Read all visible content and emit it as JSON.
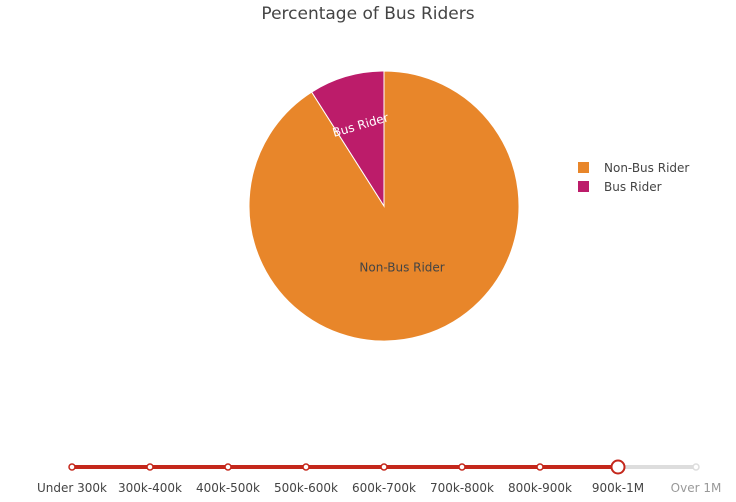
{
  "chart_data": {
    "type": "pie",
    "title": "Percentage of Bus Riders",
    "slices": [
      {
        "label": "Non-Bus Rider",
        "value": 91,
        "color": "#e8862a"
      },
      {
        "label": "Bus Rider",
        "value": 9,
        "color": "#bc1c6a"
      }
    ],
    "legend": {
      "position": "right",
      "items": [
        "Non-Bus Rider",
        "Bus Rider"
      ]
    }
  },
  "slider": {
    "steps": [
      "Under 300k",
      "300k-400k",
      "400k-500k",
      "500k-600k",
      "600k-700k",
      "700k-800k",
      "800k-900k",
      "900k-1M",
      "Over 1M"
    ],
    "selected_index": 7,
    "active_color": "#c4271b",
    "inactive_color": "#dddddd"
  }
}
